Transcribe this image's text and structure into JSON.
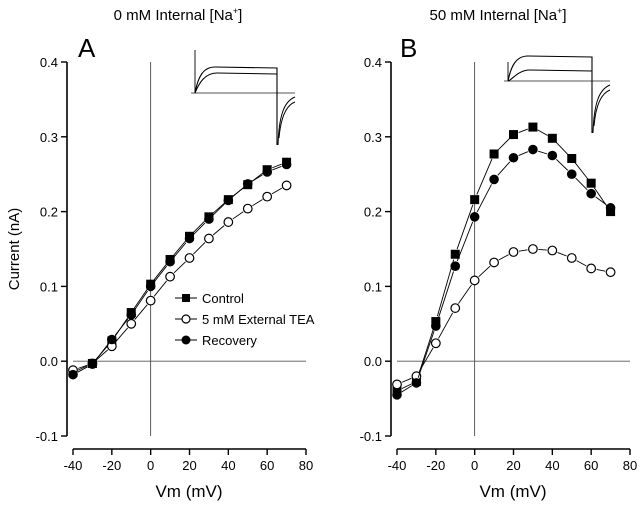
{
  "chart_data": [
    {
      "type": "line",
      "panel_label": "A",
      "title": "0 mM Internal [Na⁺]",
      "title_main": "0 mM Internal [Na",
      "title_sup": "+",
      "title_end": "]",
      "xlabel": "Vm (mV)",
      "ylabel": "Current (nA)",
      "xlim": [
        -40,
        80
      ],
      "ylim": [
        -0.1,
        0.4
      ],
      "xticks": [
        -40,
        -20,
        0,
        20,
        40,
        60,
        80
      ],
      "xtick_labels": [
        "-40",
        "-20",
        "0",
        "20",
        "40",
        "60",
        "80"
      ],
      "yticks": [
        -0.1,
        0.0,
        0.1,
        0.2,
        0.3,
        0.4
      ],
      "ytick_labels": [
        "-0.1",
        "0.0",
        "0.1",
        "0.2",
        "0.3",
        "0.4"
      ],
      "grid": false,
      "reference_lines": {
        "x": 0,
        "y": 0
      },
      "legend": {
        "placement": "center-right"
      },
      "inset": "current traces (Control and TEA) — outward step current with tail",
      "x": [
        -40,
        -30,
        -20,
        -10,
        0,
        10,
        20,
        30,
        40,
        50,
        60,
        70
      ],
      "series": [
        {
          "name": "Control",
          "marker": "filled-square",
          "values": [
            -0.015,
            -0.003,
            0.027,
            0.065,
            0.103,
            0.136,
            0.167,
            0.193,
            0.216,
            0.236,
            0.256,
            0.266
          ]
        },
        {
          "name": "5 mM External TEA",
          "marker": "open-circle",
          "values": [
            -0.012,
            -0.003,
            0.02,
            0.05,
            0.081,
            0.113,
            0.138,
            0.164,
            0.186,
            0.204,
            0.22,
            0.235
          ]
        },
        {
          "name": "Recovery",
          "marker": "filled-circle",
          "values": [
            -0.018,
            -0.004,
            0.029,
            0.062,
            0.1,
            0.133,
            0.164,
            0.19,
            0.215,
            0.237,
            0.253,
            0.263
          ]
        }
      ]
    },
    {
      "type": "line",
      "panel_label": "B",
      "title": "50 mM Internal [Na⁺]",
      "title_main": "50 mM Internal [Na",
      "title_sup": "+",
      "title_end": "]",
      "xlabel": "Vm (mV)",
      "ylabel": "",
      "xlim": [
        -40,
        80
      ],
      "ylim": [
        -0.1,
        0.4
      ],
      "xticks": [
        -40,
        -20,
        0,
        20,
        40,
        60,
        80
      ],
      "xtick_labels": [
        "-40",
        "-20",
        "0",
        "20",
        "40",
        "60",
        "80"
      ],
      "yticks": [
        -0.1,
        0.0,
        0.1,
        0.2,
        0.3,
        0.4
      ],
      "ytick_labels": [
        "-0.1",
        "0.0",
        "0.1",
        "0.2",
        "0.3",
        "0.4"
      ],
      "grid": false,
      "reference_lines": {
        "x": 0,
        "y": 0
      },
      "inset": "current traces (Control and TEA) — outward step current with tail",
      "x": [
        -40,
        -30,
        -20,
        -10,
        0,
        10,
        20,
        30,
        40,
        50,
        60,
        70
      ],
      "series": [
        {
          "name": "Control",
          "marker": "filled-square",
          "values": [
            -0.04,
            -0.027,
            0.053,
            0.143,
            0.216,
            0.277,
            0.303,
            0.313,
            0.298,
            0.271,
            0.238,
            0.2
          ]
        },
        {
          "name": "5 mM External TEA",
          "marker": "open-circle",
          "values": [
            -0.031,
            -0.02,
            0.024,
            0.071,
            0.108,
            0.132,
            0.146,
            0.15,
            0.148,
            0.138,
            0.124,
            0.119
          ]
        },
        {
          "name": "Recovery",
          "marker": "filled-circle",
          "values": [
            -0.045,
            -0.029,
            0.047,
            0.127,
            0.193,
            0.243,
            0.272,
            0.283,
            0.275,
            0.25,
            0.224,
            0.205
          ]
        }
      ]
    }
  ]
}
